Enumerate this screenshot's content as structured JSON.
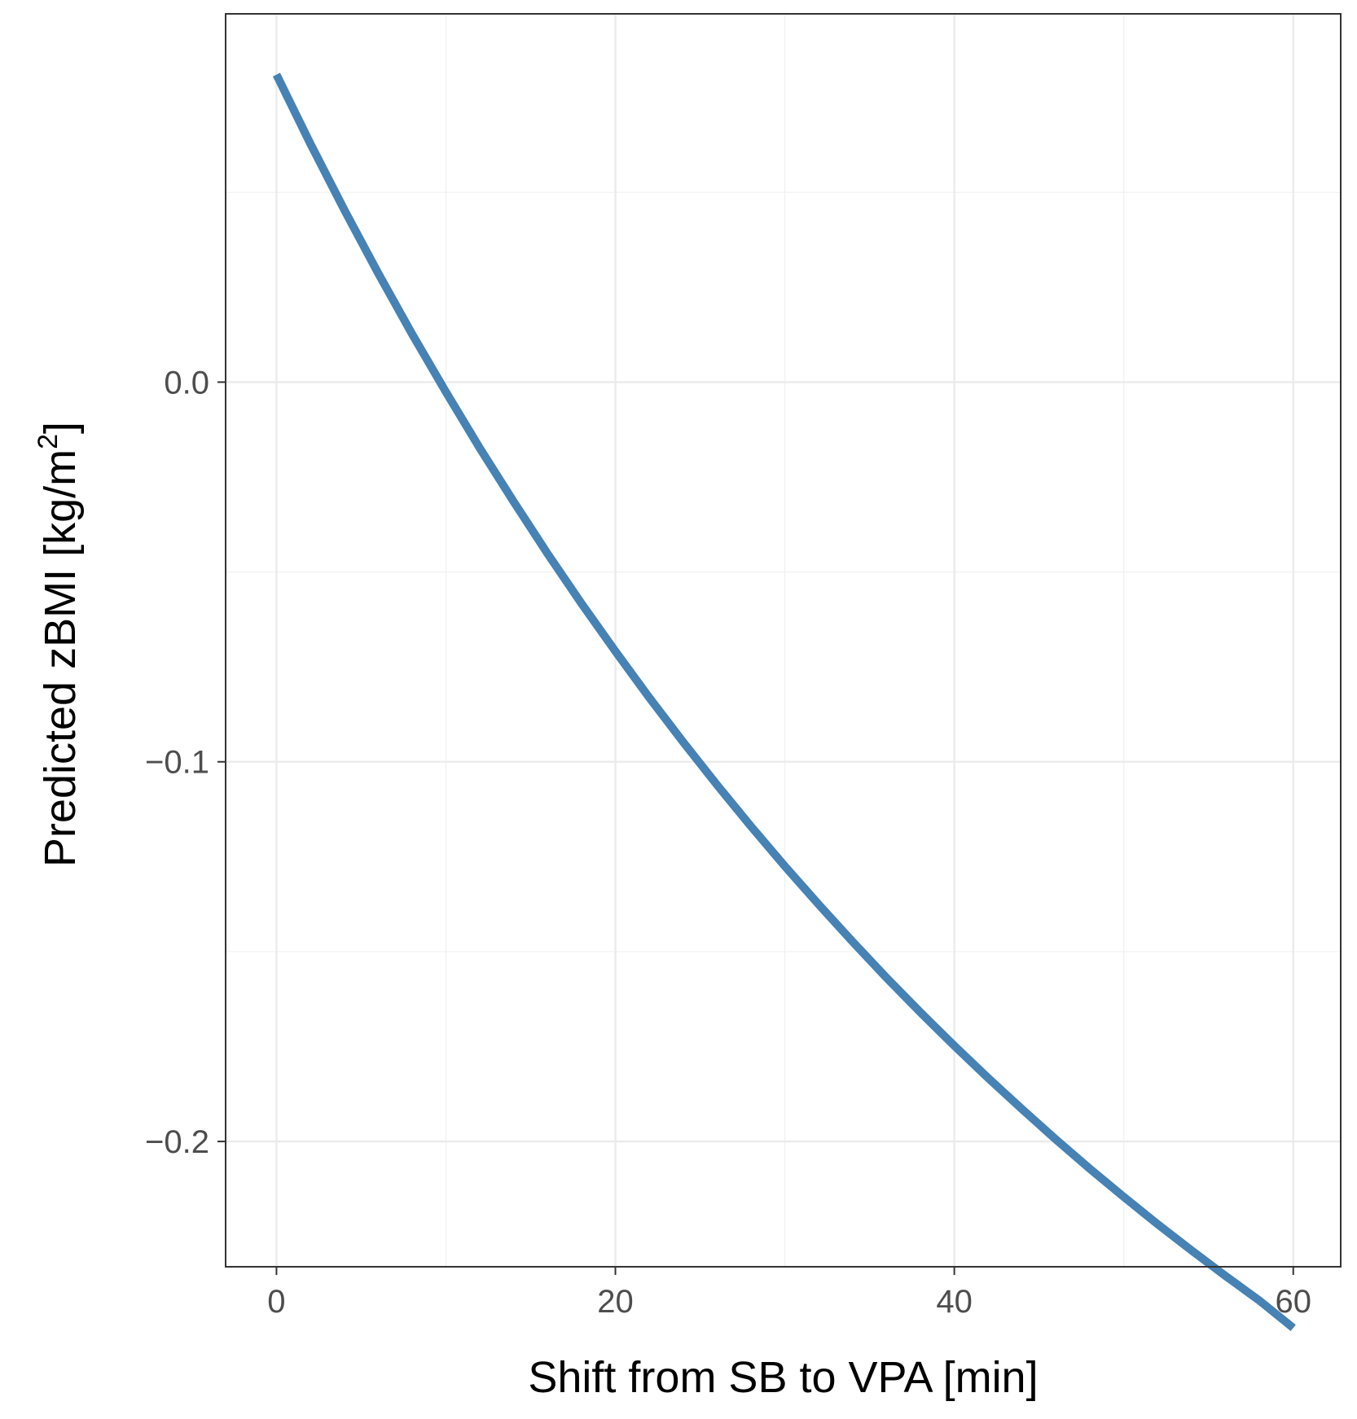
{
  "chart_data": {
    "type": "line",
    "title": "",
    "xlabel": "Shift from SB to VPA [min]",
    "ylabel": {
      "main": "Predicted zBMI [kg/m",
      "superscript": "2",
      "suffix": "]"
    },
    "xlim": [
      -3,
      62.8
    ],
    "ylim": [
      -0.233,
      0.097
    ],
    "grid": true,
    "legend": "none",
    "x_ticks": [
      0,
      20,
      40,
      60
    ],
    "x_tick_labels": [
      "0",
      "20",
      "40",
      "60"
    ],
    "x_minor_ticks": [
      10,
      30,
      50
    ],
    "y_ticks": [
      0.0,
      -0.1,
      -0.2
    ],
    "y_tick_labels": [
      "0.0",
      "−0.1",
      "−0.2"
    ],
    "y_minor_ticks": [
      0.05,
      -0.05,
      -0.15
    ],
    "series": [
      {
        "name": "Predicted zBMI",
        "color": "#4682b4",
        "x": [
          0,
          2,
          4,
          6,
          8,
          10,
          12,
          14,
          16,
          18,
          20,
          22,
          24,
          26,
          28,
          30,
          32,
          34,
          36,
          38,
          40,
          42,
          44,
          46,
          48,
          50,
          52,
          54,
          56,
          58,
          60
        ],
        "y": [
          0.081,
          0.0628,
          0.0454,
          0.0287,
          0.0127,
          -0.0026,
          -0.0174,
          -0.0315,
          -0.0452,
          -0.0583,
          -0.0709,
          -0.0831,
          -0.0948,
          -0.1061,
          -0.117,
          -0.1275,
          -0.1376,
          -0.1474,
          -0.1569,
          -0.166,
          -0.1748,
          -0.1833,
          -0.1915,
          -0.1995,
          -0.2072,
          -0.2146,
          -0.2218,
          -0.2287,
          -0.2354,
          -0.2419,
          -0.2491
        ]
      }
    ]
  }
}
